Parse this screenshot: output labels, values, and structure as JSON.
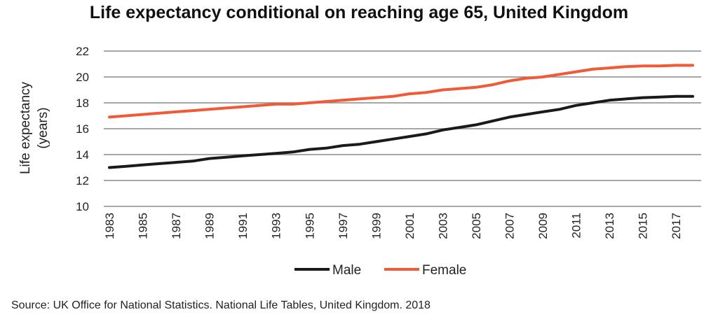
{
  "chart_data": {
    "type": "line",
    "title": "Life expectancy conditional on reaching age 65, United Kingdom",
    "ylabel_lines": [
      "Life expectancy",
      "(years)"
    ],
    "xlabel": "",
    "ylim": [
      10,
      22
    ],
    "yticks": [
      10,
      12,
      14,
      16,
      18,
      20,
      22
    ],
    "x": [
      1983,
      1984,
      1985,
      1986,
      1987,
      1988,
      1989,
      1990,
      1991,
      1992,
      1993,
      1994,
      1995,
      1996,
      1997,
      1998,
      1999,
      2000,
      2001,
      2002,
      2003,
      2004,
      2005,
      2006,
      2007,
      2008,
      2009,
      2010,
      2011,
      2012,
      2013,
      2014,
      2015,
      2016,
      2017,
      2018
    ],
    "xtick_labels": [
      "1983",
      "1985",
      "1987",
      "1989",
      "1991",
      "1993",
      "1995",
      "1997",
      "1999",
      "2001",
      "2003",
      "2005",
      "2007",
      "2009",
      "2011",
      "2013",
      "2015",
      "2017"
    ],
    "grid": "horizontal",
    "legend_position": "bottom",
    "series": [
      {
        "name": "Male",
        "color": "#1a1a1a",
        "values": [
          13.0,
          13.1,
          13.2,
          13.3,
          13.4,
          13.5,
          13.7,
          13.8,
          13.9,
          14.0,
          14.1,
          14.2,
          14.4,
          14.5,
          14.7,
          14.8,
          15.0,
          15.2,
          15.4,
          15.6,
          15.9,
          16.1,
          16.3,
          16.6,
          16.9,
          17.1,
          17.3,
          17.5,
          17.8,
          18.0,
          18.2,
          18.3,
          18.4,
          18.45,
          18.5,
          18.5
        ]
      },
      {
        "name": "Female",
        "color": "#f05a36",
        "values": [
          16.9,
          17.0,
          17.1,
          17.2,
          17.3,
          17.4,
          17.5,
          17.6,
          17.7,
          17.8,
          17.9,
          17.9,
          18.0,
          18.1,
          18.2,
          18.3,
          18.4,
          18.5,
          18.7,
          18.8,
          19.0,
          19.1,
          19.2,
          19.4,
          19.7,
          19.9,
          20.0,
          20.2,
          20.4,
          20.6,
          20.7,
          20.8,
          20.85,
          20.85,
          20.9,
          20.9
        ]
      }
    ]
  },
  "source_note": "Source: UK Office for National Statistics. National Life Tables, United Kingdom. 2018"
}
